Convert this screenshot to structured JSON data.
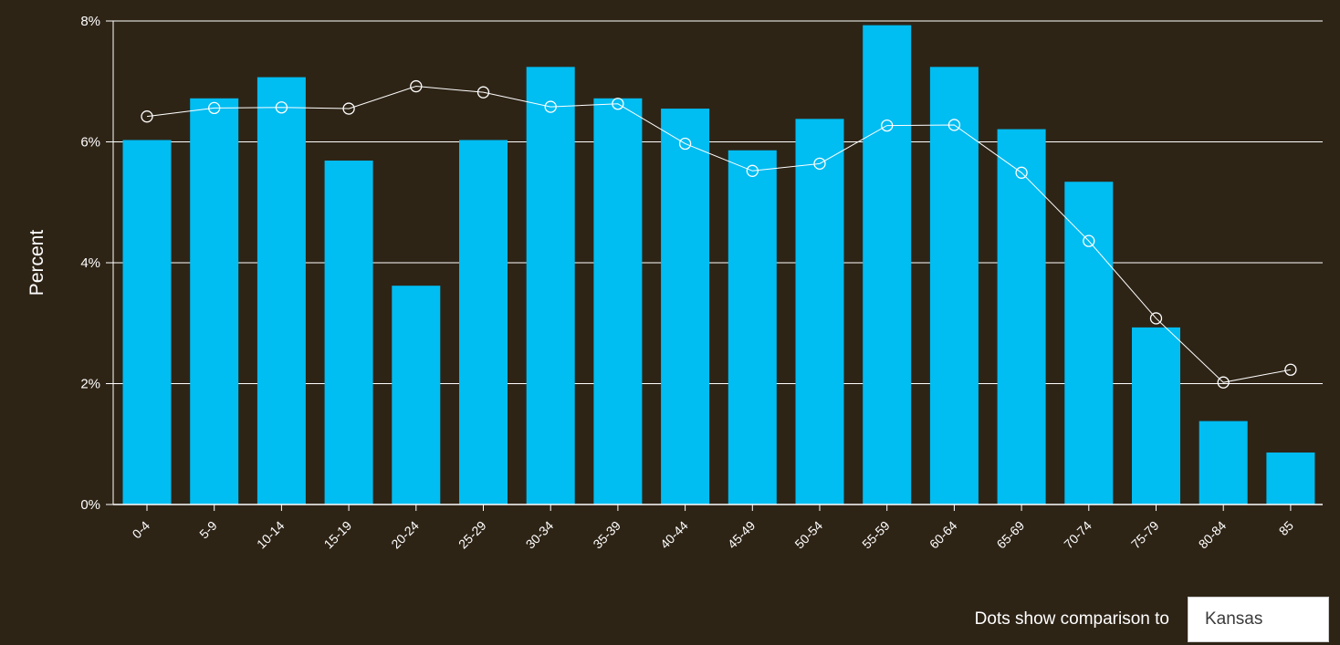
{
  "chart_data": {
    "type": "bar",
    "ylabel": "Percent",
    "xlabel": "",
    "ylim": [
      0,
      8
    ],
    "yticks": [
      0,
      2,
      4,
      6,
      8
    ],
    "ytick_labels": [
      "0%",
      "2%",
      "4%",
      "6%",
      "8%"
    ],
    "grid": true,
    "categories": [
      "0-4",
      "5-9",
      "10-14",
      "15-19",
      "20-24",
      "25-29",
      "30-34",
      "35-39",
      "40-44",
      "45-49",
      "50-54",
      "55-59",
      "60-64",
      "65-69",
      "70-74",
      "75-79",
      "80-84",
      "85"
    ],
    "series": [
      {
        "type": "bar",
        "color": "#00bdf2",
        "values": [
          6.03,
          6.72,
          7.07,
          5.69,
          3.62,
          6.03,
          7.24,
          6.72,
          6.55,
          5.86,
          6.38,
          7.93,
          7.24,
          6.21,
          5.34,
          2.93,
          1.38,
          0.86
        ]
      },
      {
        "type": "line",
        "color": "#ffffff",
        "marker": "open-circle",
        "values": [
          6.42,
          6.56,
          6.57,
          6.55,
          6.92,
          6.82,
          6.58,
          6.63,
          5.97,
          5.52,
          5.64,
          6.27,
          6.28,
          5.49,
          4.36,
          3.08,
          2.02,
          2.23
        ]
      }
    ]
  },
  "comparison": {
    "label": "Dots show comparison to",
    "selected": "Kansas"
  }
}
